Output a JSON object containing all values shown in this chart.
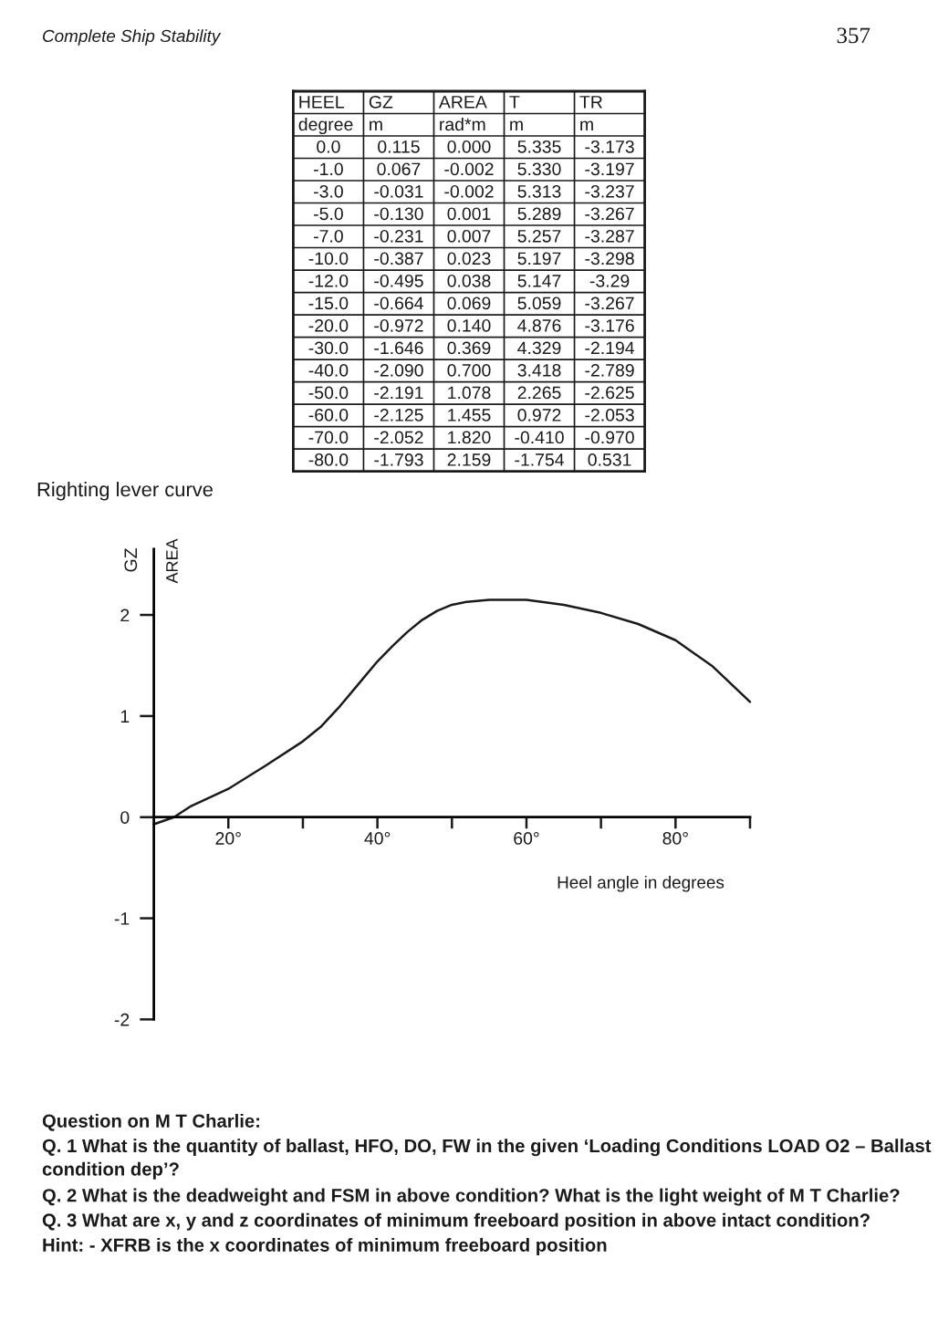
{
  "chart_data": [
    {
      "type": "other",
      "annotations": [
        "Complete Ship Stability",
        "357"
      ],
      "categories": [
        "HEEL",
        "GZ",
        "AREA",
        "T",
        "TR"
      ],
      "cell_labels": [
        [
          "degree",
          "m",
          "rad*m",
          "m",
          "m"
        ],
        [
          "0.0",
          "0.115",
          "0.000",
          "5.335",
          "-3.173"
        ],
        [
          "-1.0",
          "0.067",
          "-0.002",
          "5.330",
          "-3.197"
        ],
        [
          "-3.0",
          "-0.031",
          "-0.002",
          "5.313",
          "-3.237"
        ],
        [
          "-5.0",
          "-0.130",
          "0.001",
          "5.289",
          "-3.267"
        ],
        [
          "-7.0",
          "-0.231",
          "0.007",
          "5.257",
          "-3.287"
        ],
        [
          "-10.0",
          "-0.387",
          "0.023",
          "5.197",
          "-3.298"
        ],
        [
          "-12.0",
          "-0.495",
          "0.038",
          "5.147",
          "-3.29"
        ],
        [
          "-15.0",
          "-0.664",
          "0.069",
          "5.059",
          "-3.267"
        ],
        [
          "-20.0",
          "-0.972",
          "0.140",
          "4.876",
          "-3.176"
        ],
        [
          "-30.0",
          "-1.646",
          "0.369",
          "4.329",
          "-2.194"
        ],
        [
          "-40.0",
          "-2.090",
          "0.700",
          "3.418",
          "-2.789"
        ],
        [
          "-50.0",
          "-2.191",
          "1.078",
          "2.265",
          "-2.625"
        ],
        [
          "-60.0",
          "-2.125",
          "1.455",
          "0.972",
          "-2.053"
        ],
        [
          "-70.0",
          "-2.052",
          "1.820",
          "-0.410",
          "-0.970"
        ],
        [
          "-80.0",
          "-1.793",
          "2.159",
          "-1.754",
          "0.531"
        ]
      ]
    },
    {
      "type": "line",
      "title": "Righting lever curve",
      "xlabel": "Heel angle in degrees",
      "ylabel": "GZ",
      "annotations": [
        "AREA"
      ],
      "x": [
        10,
        12.7,
        15,
        20,
        25,
        30,
        32.5,
        35,
        37.5,
        40,
        42,
        44,
        46,
        48,
        50,
        52,
        55,
        60,
        65,
        70,
        75,
        80,
        85,
        90
      ],
      "series": [
        {
          "color": "#1a1a1a",
          "values": [
            -0.07,
            0,
            0.11,
            0.28,
            0.51,
            0.75,
            0.9,
            1.1,
            1.32,
            1.54,
            1.69,
            1.83,
            1.95,
            2.04,
            2.1,
            2.13,
            2.15,
            2.15,
            2.1,
            2.02,
            1.91,
            1.75,
            1.49,
            1.14
          ]
        }
      ],
      "xlim": [
        10,
        90
      ],
      "ylim": [
        -2,
        2.65
      ],
      "xticks": [
        {
          "value": 20,
          "label": "20°"
        },
        {
          "value": 30,
          "label": null
        },
        {
          "value": 40,
          "label": "40°"
        },
        {
          "value": 50,
          "label": null
        },
        {
          "value": 60,
          "label": "60°"
        },
        {
          "value": 70,
          "label": null
        },
        {
          "value": 80,
          "label": "80°"
        },
        {
          "value": 90,
          "label": null
        }
      ],
      "yticks": [
        -2,
        -1,
        0,
        1,
        2
      ]
    },
    {
      "type": "other",
      "title": "Question on M T Charlie:",
      "annotations": [
        "Q. 1 What is the quantity of ballast, HFO, DO, FW in the given ‘Loading Conditions LOAD O2 – Ballast condition dep’?",
        "Q. 2 What is the deadweight and FSM in above condition? What is the light weight of M T Charlie?",
        "Q. 3 What are x, y and z coordinates of minimum freeboard position in above intact condition?",
        "Hint: - XFRB is the x coordinates of minimum freeboard position"
      ]
    }
  ]
}
